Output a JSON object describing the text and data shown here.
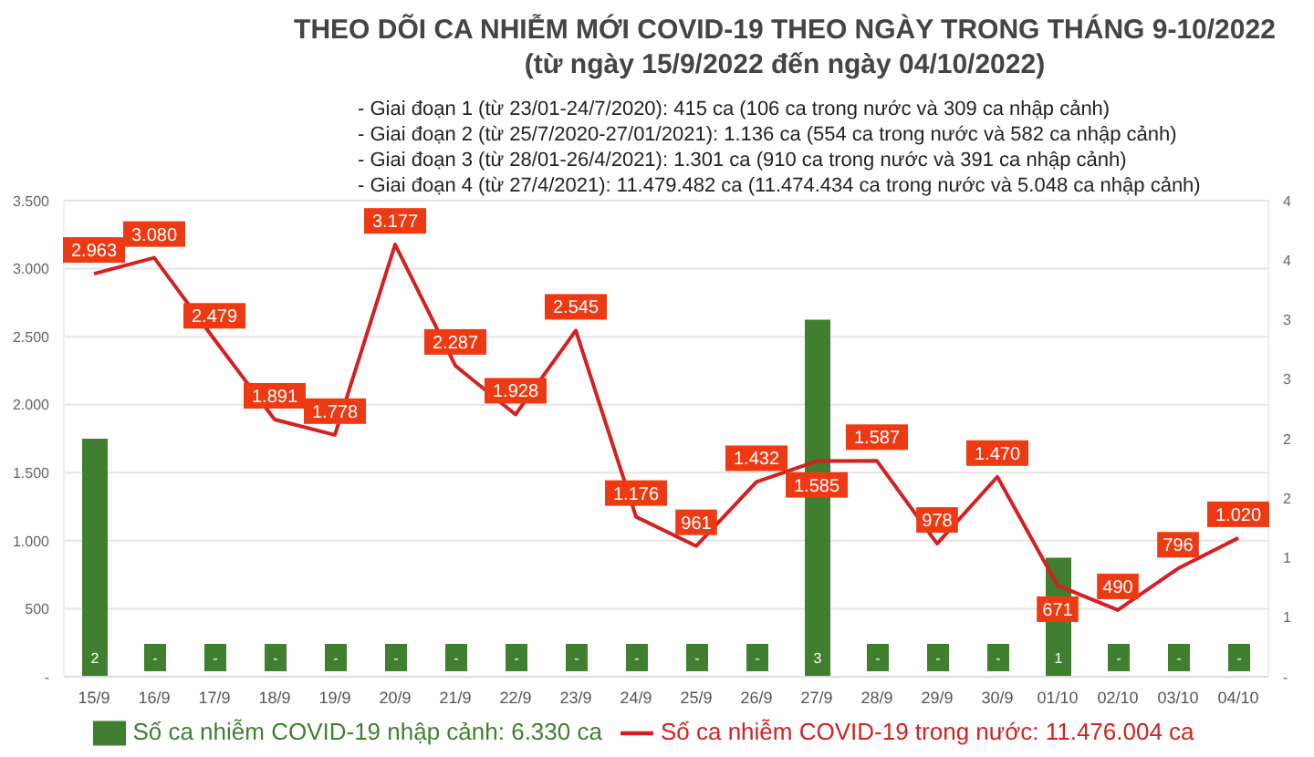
{
  "chart_data": {
    "type": "bar",
    "title": "THEO DÕI CA NHIỄM MỚI COVID-19 THEO NGÀY TRONG THÁNG 9-10/2022",
    "subtitle": "(từ ngày 15/9/2022 đến ngày 04/10/2022)",
    "annotations": [
      "- Giai đoạn 1 (từ 23/01-24/7/2020): 415 ca (106 ca trong nước và 309 ca nhập cảnh)",
      "- Giai đoạn 2 (từ 25/7/2020-27/01/2021): 1.136 ca (554 ca trong nước và 582 ca nhập cảnh)",
      "- Giai đoạn 3 (từ 28/01-26/4/2021): 1.301 ca (910 ca trong nước và 391 ca nhập cảnh)",
      "- Giai đoạn 4 (từ 27/4/2021): 11.479.482 ca (11.474.434 ca trong nước và 5.048 ca nhập cảnh)"
    ],
    "categories": [
      "15/9",
      "16/9",
      "17/9",
      "18/9",
      "19/9",
      "20/9",
      "21/9",
      "22/9",
      "23/9",
      "24/9",
      "25/9",
      "26/9",
      "27/9",
      "28/9",
      "29/9",
      "30/9",
      "01/10",
      "02/10",
      "03/10",
      "04/10"
    ],
    "series": [
      {
        "name": "Số ca nhiễm COVID-19 nhập cảnh: 6.330 ca",
        "axis": "y2",
        "color": "#3f7f2f",
        "values": [
          2,
          0,
          0,
          0,
          0,
          0,
          0,
          0,
          0,
          0,
          0,
          0,
          3,
          0,
          0,
          0,
          1,
          0,
          0,
          0
        ],
        "value_labels": [
          "2",
          "-",
          "-",
          "-",
          "-",
          "-",
          "-",
          "-",
          "-",
          "-",
          "-",
          "-",
          "3",
          "-",
          "-",
          "-",
          "1",
          "-",
          "-",
          "-"
        ]
      },
      {
        "name": "Số ca nhiễm COVID-19 trong nước: 11.476.004 ca",
        "type": "line",
        "color": "#d42020",
        "values": [
          2963,
          3080,
          2479,
          1891,
          1778,
          3177,
          2287,
          1928,
          2545,
          1176,
          961,
          1432,
          1585,
          1587,
          978,
          1470,
          671,
          490,
          796,
          1020
        ],
        "value_labels": [
          "2.963",
          "3.080",
          "2.479",
          "1.891",
          "1.778",
          "3.177",
          "2.287",
          "1.928",
          "2.545",
          "1.176",
          "961",
          "1.432",
          "1.585",
          "1.587",
          "978",
          "1.470",
          "671",
          "490",
          "796",
          "1.020"
        ]
      }
    ],
    "ylim": [
      0,
      3500
    ],
    "yticks": [
      {
        "value": 0,
        "label": "-"
      },
      {
        "value": 500,
        "label": "500"
      },
      {
        "value": 1000,
        "label": "1.000"
      },
      {
        "value": 1500,
        "label": "1.500"
      },
      {
        "value": 2000,
        "label": "2.000"
      },
      {
        "value": 2500,
        "label": "2.500"
      },
      {
        "value": 3000,
        "label": "3.000"
      },
      {
        "value": 3500,
        "label": "3.500"
      }
    ],
    "y2lim": [
      0,
      4
    ],
    "y2ticks": [
      {
        "value": 0,
        "label": "-"
      },
      {
        "value": 0.5,
        "label": "1"
      },
      1,
      {
        "value": 1.5,
        "label": "2"
      },
      2,
      {
        "value": 2.5,
        "label": "3"
      },
      3,
      {
        "value": 3.5,
        "label": "4"
      },
      4
    ],
    "grid": "y",
    "legend": "bottom",
    "marker": "none"
  }
}
